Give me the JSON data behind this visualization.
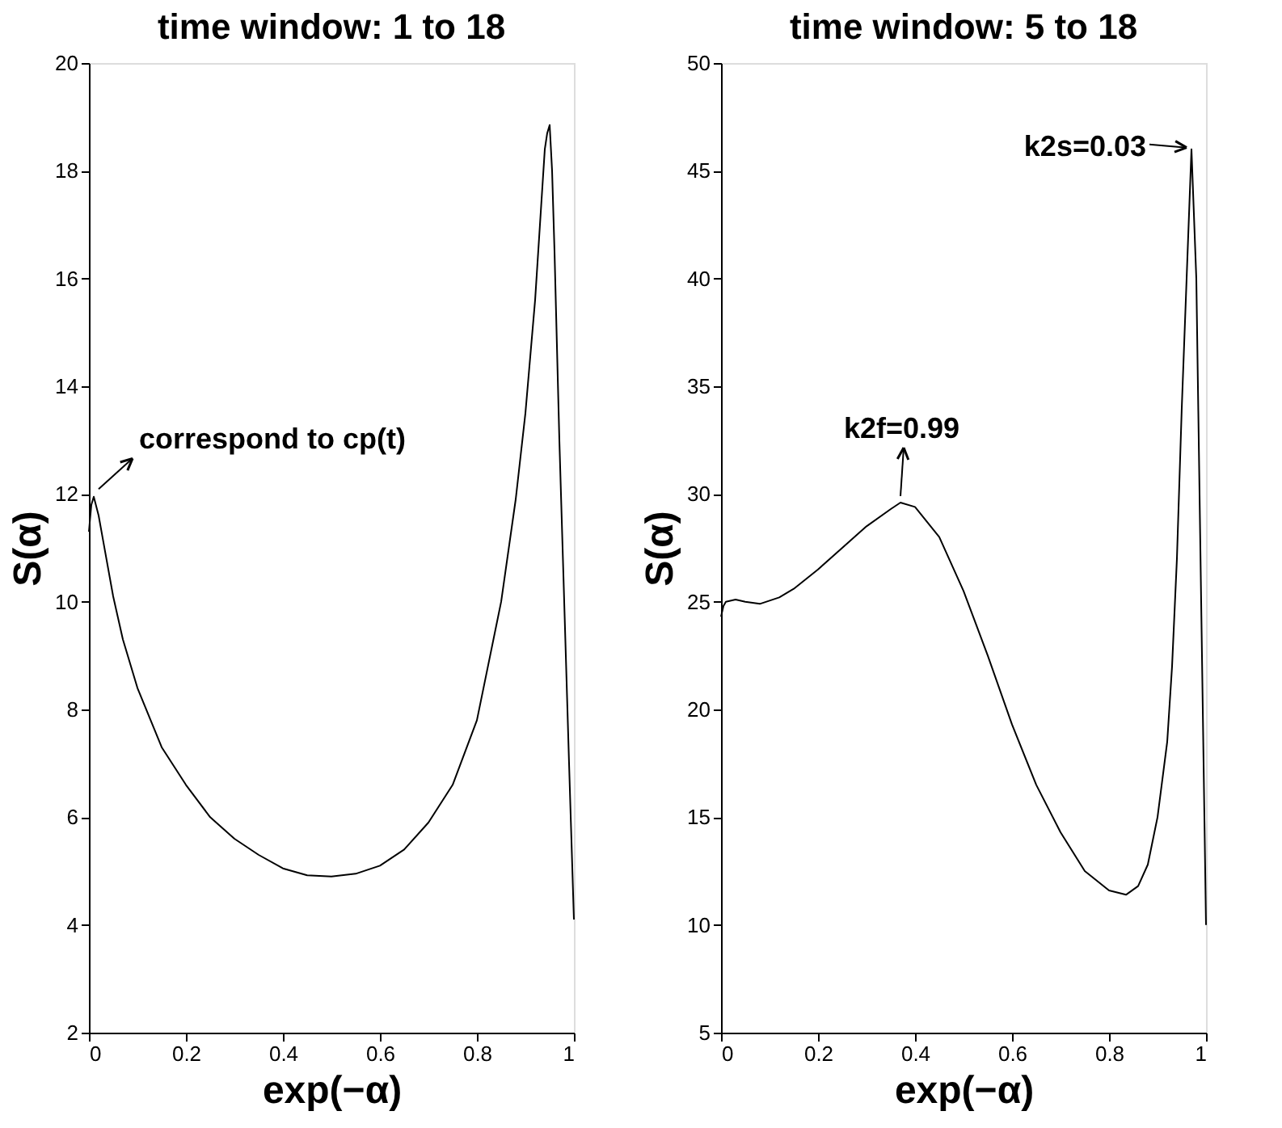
{
  "chart_data": [
    {
      "type": "line",
      "title": "time window: 1 to 18",
      "xlabel": "exp(−α)",
      "ylabel": "S(α)",
      "xlim": [
        0,
        1
      ],
      "ylim": [
        2,
        20
      ],
      "xticks": [
        0,
        0.2,
        0.4,
        0.6,
        0.8,
        1
      ],
      "yticks": [
        2,
        4,
        6,
        8,
        10,
        12,
        14,
        16,
        18,
        20
      ],
      "grid": false,
      "color": "#000000",
      "x": [
        0,
        0.005,
        0.01,
        0.02,
        0.03,
        0.05,
        0.07,
        0.1,
        0.15,
        0.2,
        0.25,
        0.3,
        0.35,
        0.4,
        0.45,
        0.5,
        0.55,
        0.6,
        0.65,
        0.7,
        0.75,
        0.8,
        0.85,
        0.88,
        0.9,
        0.92,
        0.93,
        0.94,
        0.945,
        0.95,
        0.955,
        0.96,
        0.97,
        0.98,
        0.99,
        1
      ],
      "values": [
        11.3,
        11.8,
        11.95,
        11.6,
        11.1,
        10.1,
        9.3,
        8.4,
        7.3,
        6.6,
        6.0,
        5.6,
        5.3,
        5.05,
        4.92,
        4.9,
        4.95,
        5.1,
        5.4,
        5.9,
        6.6,
        7.8,
        10.0,
        11.9,
        13.5,
        15.6,
        17.0,
        18.4,
        18.7,
        18.85,
        18.0,
        16.5,
        13.0,
        10.0,
        7.0,
        4.1
      ],
      "annotations": [
        {
          "text": "correspond to cp(t)",
          "x": 0.01,
          "y": 12
        }
      ]
    },
    {
      "type": "line",
      "title": "time window: 5 to 18",
      "xlabel": "exp(−α)",
      "ylabel": "S(α)",
      "xlim": [
        0,
        1
      ],
      "ylim": [
        5,
        50
      ],
      "xticks": [
        0,
        0.2,
        0.4,
        0.6,
        0.8,
        1
      ],
      "yticks": [
        5,
        10,
        15,
        20,
        25,
        30,
        35,
        40,
        45,
        50
      ],
      "grid": false,
      "color": "#000000",
      "x": [
        0,
        0.005,
        0.01,
        0.03,
        0.05,
        0.08,
        0.12,
        0.15,
        0.2,
        0.25,
        0.3,
        0.35,
        0.37,
        0.4,
        0.45,
        0.5,
        0.55,
        0.6,
        0.65,
        0.7,
        0.75,
        0.8,
        0.835,
        0.86,
        0.88,
        0.9,
        0.92,
        0.93,
        0.94,
        0.95,
        0.96,
        0.97,
        0.98,
        0.99,
        1
      ],
      "values": [
        24.3,
        24.8,
        25.0,
        25.1,
        25.0,
        24.9,
        25.2,
        25.6,
        26.5,
        27.5,
        28.5,
        29.3,
        29.6,
        29.4,
        28.0,
        25.5,
        22.5,
        19.3,
        16.5,
        14.3,
        12.5,
        11.6,
        11.4,
        11.8,
        12.8,
        15.0,
        18.5,
        22.0,
        27.0,
        34.0,
        40.0,
        46.0,
        40.0,
        25.0,
        10.0
      ],
      "annotations": [
        {
          "text": "k2f=0.99",
          "x": 0.37,
          "y": 29.6
        },
        {
          "text": "k2s=0.03",
          "x": 0.97,
          "y": 46
        }
      ]
    }
  ]
}
